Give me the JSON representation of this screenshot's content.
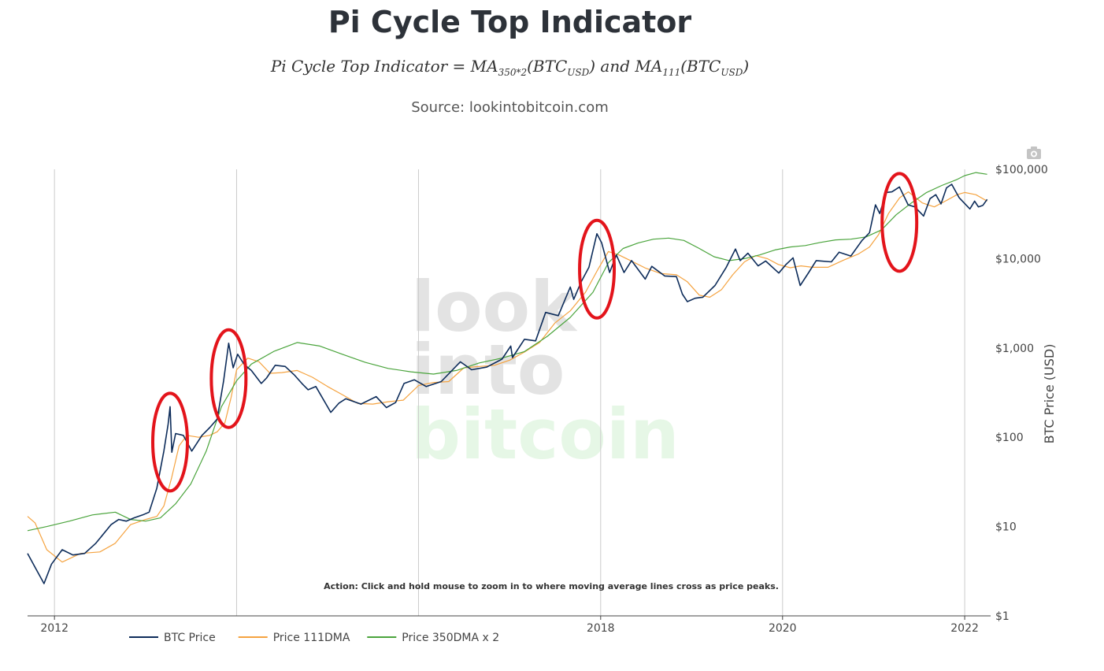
{
  "header": {
    "title": "Pi Cycle Top Indicator",
    "formula": {
      "lhs": "Pi Cycle Top Indicator = ",
      "ma_a": "MA",
      "ma_a_sub": "350*2",
      "btc_a": "(BTC",
      "usd_a": "USD",
      "close_a": ")",
      "and": " and ",
      "ma_b": "MA",
      "ma_b_sub": "111",
      "btc_b": "(BTC",
      "usd_b": "USD",
      "close_b": ")"
    },
    "source": "Source: lookintobitcoin.com"
  },
  "watermark": {
    "line1": "look",
    "line2": "into",
    "line3": "bitcoin"
  },
  "annotation": "Action: Click and hold mouse to zoom in to where moving average lines cross as price peaks.",
  "icons": {
    "toolbar": "camera-icon"
  },
  "colors": {
    "btc_price": "#0d2c5a",
    "ma111": "#f5a340",
    "ma350x2": "#4aa43c",
    "highlight": "#e3141b",
    "grid": "#cccccc"
  },
  "chart_data": {
    "type": "line",
    "title": "Pi Cycle Top Indicator",
    "xlabel": "",
    "ylabel": "BTC Price (USD)",
    "y_scale": "log",
    "ylim": [
      1,
      100000
    ],
    "xlim": [
      "2011-09-15",
      "2022-04-15"
    ],
    "x_ticks": [
      {
        "date": "2012-01-01",
        "label": "2012"
      },
      {
        "date": "2018-01-01",
        "label": "2018"
      },
      {
        "date": "2020-01-01",
        "label": "2020"
      },
      {
        "date": "2022-01-01",
        "label": "2022"
      }
    ],
    "x_gridlines": [
      "2012-01-01",
      "2014-01-01",
      "2016-01-01",
      "2018-01-01",
      "2020-01-01",
      "2022-01-01"
    ],
    "y_ticks": [
      {
        "value": 1,
        "label": "$1"
      },
      {
        "value": 10,
        "label": "$10"
      },
      {
        "value": 100,
        "label": "$100"
      },
      {
        "value": 1000,
        "label": "$1,000"
      },
      {
        "value": 10000,
        "label": "$10,000"
      },
      {
        "value": 100000,
        "label": "$100,000"
      }
    ],
    "grid": "vertical only",
    "legend_position": "bottom-left",
    "series": [
      {
        "name": "BTC Price",
        "x": [
          "2011-09-15",
          "2011-10-15",
          "2011-11-20",
          "2011-12-20",
          "2012-02-01",
          "2012-03-15",
          "2012-05-01",
          "2012-06-15",
          "2012-08-15",
          "2012-09-15",
          "2012-10-15",
          "2012-11-15",
          "2012-12-20",
          "2013-01-15",
          "2013-02-15",
          "2013-03-15",
          "2013-04-01",
          "2013-04-09",
          "2013-04-16",
          "2013-05-01",
          "2013-06-01",
          "2013-07-05",
          "2013-08-15",
          "2013-09-15",
          "2013-10-15",
          "2013-11-10",
          "2013-11-30",
          "2013-12-18",
          "2014-01-05",
          "2014-02-01",
          "2014-03-01",
          "2014-04-10",
          "2014-05-01",
          "2014-06-05",
          "2014-07-15",
          "2014-08-20",
          "2014-09-20",
          "2014-10-15",
          "2014-11-15",
          "2015-01-14",
          "2015-02-15",
          "2015-03-15",
          "2015-05-15",
          "2015-07-15",
          "2015-08-25",
          "2015-10-01",
          "2015-11-04",
          "2015-12-15",
          "2016-02-01",
          "2016-04-01",
          "2016-06-17",
          "2016-08-01",
          "2016-10-01",
          "2016-12-01",
          "2017-01-05",
          "2017-01-12",
          "2017-03-01",
          "2017-04-15",
          "2017-05-25",
          "2017-07-15",
          "2017-09-01",
          "2017-09-15",
          "2017-10-15",
          "2017-11-15",
          "2017-12-17",
          "2018-01-05",
          "2018-02-06",
          "2018-03-05",
          "2018-04-05",
          "2018-05-05",
          "2018-06-29",
          "2018-07-25",
          "2018-09-15",
          "2018-11-01",
          "2018-11-25",
          "2018-12-15",
          "2019-01-15",
          "2019-02-15",
          "2019-04-05",
          "2019-05-20",
          "2019-06-26",
          "2019-07-15",
          "2019-08-15",
          "2019-09-25",
          "2019-10-25",
          "2019-12-17",
          "2020-01-15",
          "2020-02-12",
          "2020-03-12",
          "2020-04-15",
          "2020-05-15",
          "2020-07-15",
          "2020-08-15",
          "2020-10-01",
          "2020-11-15",
          "2020-12-15",
          "2021-01-08",
          "2021-01-25",
          "2021-02-20",
          "2021-03-15",
          "2021-04-14",
          "2021-05-19",
          "2021-06-15",
          "2021-07-20",
          "2021-08-15",
          "2021-09-07",
          "2021-09-28",
          "2021-10-20",
          "2021-11-10",
          "2021-12-10",
          "2022-01-22",
          "2022-02-10",
          "2022-02-25",
          "2022-03-15",
          "2022-04-01"
        ],
        "y": [
          5,
          3.5,
          2.3,
          3.8,
          5.5,
          4.8,
          5.0,
          6.5,
          10.5,
          12.0,
          11.5,
          12.5,
          13.5,
          14.5,
          27,
          70,
          140,
          220,
          68,
          110,
          105,
          70,
          105,
          128,
          160,
          430,
          1130,
          600,
          850,
          650,
          560,
          400,
          460,
          640,
          620,
          500,
          400,
          340,
          370,
          190,
          240,
          270,
          235,
          285,
          215,
          245,
          400,
          440,
          370,
          420,
          700,
          570,
          610,
          750,
          1050,
          780,
          1250,
          1200,
          2500,
          2300,
          4800,
          3500,
          5500,
          8000,
          19000,
          15000,
          7000,
          11000,
          7000,
          9500,
          5900,
          8200,
          6400,
          6300,
          4000,
          3300,
          3600,
          3700,
          5000,
          8000,
          12800,
          9500,
          11500,
          8300,
          9400,
          6900,
          8600,
          10200,
          5000,
          7000,
          9500,
          9200,
          11800,
          10700,
          16000,
          19500,
          40000,
          32000,
          55000,
          56000,
          63500,
          40000,
          38000,
          30000,
          47000,
          52000,
          41000,
          62000,
          68000,
          48000,
          36000,
          44000,
          38000,
          39500,
          46000
        ]
      },
      {
        "name": "Price 111DMA",
        "x": [
          "2011-09-15",
          "2011-10-15",
          "2011-12-01",
          "2012-02-01",
          "2012-04-15",
          "2012-07-01",
          "2012-09-01",
          "2012-11-01",
          "2013-01-01",
          "2013-02-15",
          "2013-03-15",
          "2013-04-15",
          "2013-05-15",
          "2013-06-15",
          "2013-08-01",
          "2013-09-15",
          "2013-10-15",
          "2013-11-15",
          "2013-12-10",
          "2014-01-01",
          "2014-02-15",
          "2014-04-01",
          "2014-05-15",
          "2014-07-01",
          "2014-09-01",
          "2014-11-01",
          "2015-01-01",
          "2015-03-01",
          "2015-05-01",
          "2015-07-01",
          "2015-09-01",
          "2015-11-01",
          "2016-01-01",
          "2016-03-01",
          "2016-05-01",
          "2016-07-01",
          "2016-09-01",
          "2016-11-01",
          "2017-01-01",
          "2017-03-01",
          "2017-05-01",
          "2017-07-01",
          "2017-09-01",
          "2017-11-01",
          "2017-12-20",
          "2018-02-01",
          "2018-03-15",
          "2018-05-01",
          "2018-07-01",
          "2018-09-01",
          "2018-11-01",
          "2018-12-15",
          "2019-02-01",
          "2019-03-15",
          "2019-05-01",
          "2019-06-15",
          "2019-08-01",
          "2019-09-15",
          "2019-11-01",
          "2019-12-15",
          "2020-02-01",
          "2020-03-15",
          "2020-05-01",
          "2020-07-01",
          "2020-09-01",
          "2020-11-01",
          "2020-12-15",
          "2021-01-20",
          "2021-03-01",
          "2021-04-15",
          "2021-05-20",
          "2021-07-15",
          "2021-09-01",
          "2021-10-15",
          "2021-12-01",
          "2022-01-01",
          "2022-02-15",
          "2022-04-01"
        ],
        "y": [
          13,
          11,
          5.5,
          4.0,
          5.0,
          5.2,
          6.5,
          10.5,
          12,
          13,
          17,
          35,
          80,
          105,
          100,
          105,
          115,
          145,
          280,
          570,
          770,
          700,
          520,
          530,
          560,
          470,
          370,
          300,
          240,
          235,
          250,
          260,
          380,
          410,
          420,
          600,
          620,
          640,
          730,
          900,
          1150,
          1900,
          2600,
          4200,
          7500,
          12000,
          11000,
          9500,
          7800,
          6800,
          6600,
          5500,
          3900,
          3700,
          4500,
          6600,
          9200,
          10800,
          10000,
          8600,
          7900,
          8300,
          8000,
          8000,
          9600,
          11300,
          13500,
          18500,
          32000,
          48000,
          56000,
          42000,
          38000,
          44000,
          52000,
          55000,
          52000,
          44000
        ]
      },
      {
        "name": "Price 350DMA x 2",
        "x": [
          "2011-09-15",
          "2011-12-01",
          "2012-03-01",
          "2012-06-01",
          "2012-09-01",
          "2012-11-01",
          "2013-01-01",
          "2013-03-01",
          "2013-05-01",
          "2013-07-01",
          "2013-09-01",
          "2013-11-01",
          "2014-01-01",
          "2014-03-01",
          "2014-06-01",
          "2014-09-01",
          "2014-12-01",
          "2015-03-01",
          "2015-06-01",
          "2015-09-01",
          "2015-12-01",
          "2016-03-01",
          "2016-06-01",
          "2016-09-01",
          "2016-12-01",
          "2017-03-01",
          "2017-06-01",
          "2017-09-01",
          "2017-12-01",
          "2018-02-01",
          "2018-04-01",
          "2018-06-01",
          "2018-08-01",
          "2018-10-01",
          "2018-12-01",
          "2019-02-01",
          "2019-04-01",
          "2019-06-01",
          "2019-08-01",
          "2019-10-01",
          "2019-12-01",
          "2020-02-01",
          "2020-04-01",
          "2020-06-01",
          "2020-08-01",
          "2020-10-01",
          "2020-12-01",
          "2021-02-01",
          "2021-04-01",
          "2021-06-01",
          "2021-08-01",
          "2021-10-01",
          "2021-12-01",
          "2022-01-01",
          "2022-02-15",
          "2022-04-01"
        ],
        "y": [
          9.0,
          10.0,
          11.5,
          13.5,
          14.5,
          12.0,
          11.5,
          12.5,
          18,
          30,
          70,
          220,
          430,
          660,
          920,
          1150,
          1050,
          850,
          690,
          590,
          540,
          510,
          560,
          680,
          770,
          910,
          1350,
          2200,
          4200,
          9000,
          13000,
          15000,
          16500,
          17000,
          16000,
          13000,
          10500,
          9500,
          10000,
          11000,
          12500,
          13500,
          14000,
          15200,
          16200,
          16500,
          17500,
          21000,
          31000,
          42000,
          55000,
          66000,
          77000,
          85000,
          92000,
          88000
        ]
      }
    ],
    "highlighted_peaks": [
      "2013-04-09",
      "2013-11-30",
      "2017-12-17",
      "2021-04-14"
    ]
  }
}
